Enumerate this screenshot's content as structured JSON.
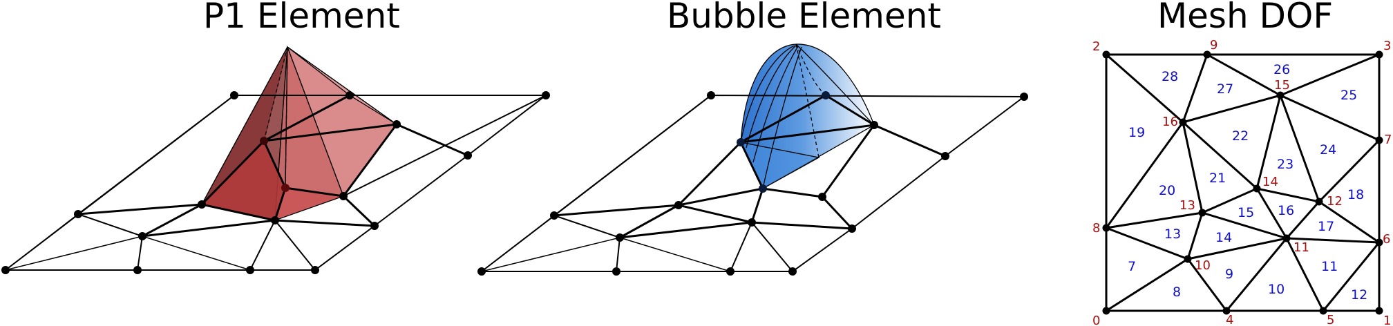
{
  "titles": {
    "p1": "P1 Element",
    "bubble": "Bubble Element",
    "mesh": "Mesh DOF"
  },
  "colors": {
    "p1_fill": "#c94848",
    "bubble_fill": "#3c84d8",
    "node_label": "#a80f0f",
    "triangle_label": "#1010c8"
  },
  "mesh": {
    "nodes": [
      {
        "label": "0"
      },
      {
        "label": "1"
      },
      {
        "label": "2"
      },
      {
        "label": "3"
      },
      {
        "label": "4"
      },
      {
        "label": "5"
      },
      {
        "label": "6"
      },
      {
        "label": "7"
      },
      {
        "label": "8"
      },
      {
        "label": "9"
      },
      {
        "label": "10"
      },
      {
        "label": "11"
      },
      {
        "label": "12"
      },
      {
        "label": "13"
      },
      {
        "label": "14"
      },
      {
        "label": "15"
      },
      {
        "label": "16"
      }
    ],
    "triangles": [
      {
        "label": "7"
      },
      {
        "label": "8"
      },
      {
        "label": "9"
      },
      {
        "label": "10"
      },
      {
        "label": "11"
      },
      {
        "label": "12"
      },
      {
        "label": "13"
      },
      {
        "label": "14"
      },
      {
        "label": "15"
      },
      {
        "label": "16"
      },
      {
        "label": "17"
      },
      {
        "label": "18"
      },
      {
        "label": "19"
      },
      {
        "label": "20"
      },
      {
        "label": "21"
      },
      {
        "label": "22"
      },
      {
        "label": "23"
      },
      {
        "label": "24"
      },
      {
        "label": "25"
      },
      {
        "label": "26"
      },
      {
        "label": "27"
      },
      {
        "label": "28"
      }
    ]
  }
}
